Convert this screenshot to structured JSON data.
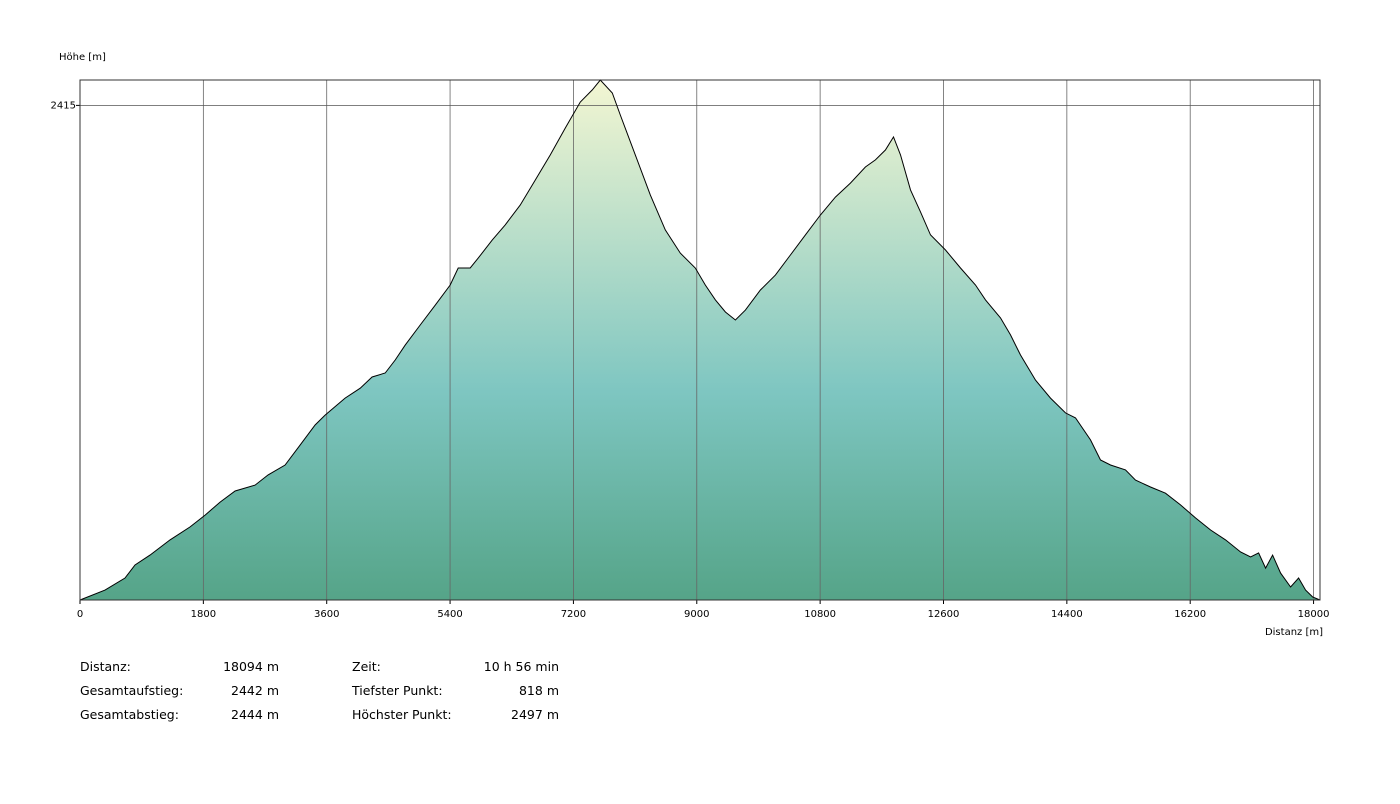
{
  "chart_data": {
    "type": "area",
    "y_label": "Höhe [m]",
    "x_label": "Distanz [m]",
    "xlim": [
      0,
      18094
    ],
    "ylim": [
      818,
      2497
    ],
    "xticks": [
      0,
      1800,
      3600,
      5400,
      7200,
      9000,
      10800,
      12600,
      14400,
      16200,
      18000
    ],
    "yticks": [
      2415
    ],
    "grid": true,
    "line_color": "#000000",
    "gradient": [
      "#f3f6d2",
      "#7ec6c1",
      "#55a488"
    ],
    "x": [
      0,
      365,
      657,
      803,
      1022,
      1314,
      1606,
      1825,
      2044,
      2263,
      2555,
      2745,
      2993,
      3212,
      3431,
      3577,
      3869,
      4088,
      4263,
      4453,
      4599,
      4745,
      4964,
      5183,
      5402,
      5518,
      5694,
      5810,
      6015,
      6205,
      6424,
      6643,
      6862,
      7081,
      7300,
      7475,
      7592,
      7767,
      7884,
      8103,
      8322,
      8541,
      8760,
      8979,
      9125,
      9271,
      9417,
      9563,
      9709,
      9928,
      10147,
      10366,
      10585,
      10804,
      11023,
      11242,
      11461,
      11607,
      11753,
      11870,
      11972,
      12118,
      12264,
      12410,
      12629,
      12848,
      13067,
      13213,
      13432,
      13578,
      13723,
      13942,
      14161,
      14380,
      14526,
      14745,
      14891,
      15037,
      15256,
      15402,
      15621,
      15840,
      16059,
      16278,
      16497,
      16716,
      16935,
      17081,
      17198,
      17300,
      17403,
      17519,
      17665,
      17782,
      17884,
      17986,
      18094
    ],
    "values": [
      818,
      850,
      889,
      931,
      963,
      1012,
      1054,
      1092,
      1134,
      1170,
      1189,
      1222,
      1254,
      1318,
      1383,
      1415,
      1470,
      1502,
      1538,
      1551,
      1593,
      1641,
      1706,
      1770,
      1835,
      1890,
      1890,
      1922,
      1980,
      2029,
      2093,
      2174,
      2255,
      2342,
      2426,
      2465,
      2497,
      2455,
      2384,
      2255,
      2126,
      2013,
      1938,
      1890,
      1835,
      1787,
      1748,
      1722,
      1754,
      1819,
      1867,
      1932,
      1997,
      2061,
      2119,
      2164,
      2216,
      2239,
      2271,
      2313,
      2255,
      2142,
      2071,
      1997,
      1948,
      1890,
      1835,
      1787,
      1729,
      1674,
      1609,
      1528,
      1470,
      1422,
      1406,
      1335,
      1270,
      1254,
      1238,
      1205,
      1183,
      1163,
      1125,
      1083,
      1044,
      1012,
      973,
      957,
      970,
      921,
      963,
      905,
      860,
      889,
      850,
      828,
      818
    ]
  },
  "stats": [
    [
      {
        "label": "Distanz:",
        "value": "18094 m"
      },
      {
        "label": "Zeit:",
        "value": "10 h 56 min"
      }
    ],
    [
      {
        "label": "Gesamtaufstieg:",
        "value": "2442 m"
      },
      {
        "label": "Tiefster Punkt:",
        "value": "818 m"
      }
    ],
    [
      {
        "label": "Gesamtabstieg:",
        "value": "2444 m"
      },
      {
        "label": "Höchster Punkt:",
        "value": "2497 m"
      }
    ]
  ]
}
